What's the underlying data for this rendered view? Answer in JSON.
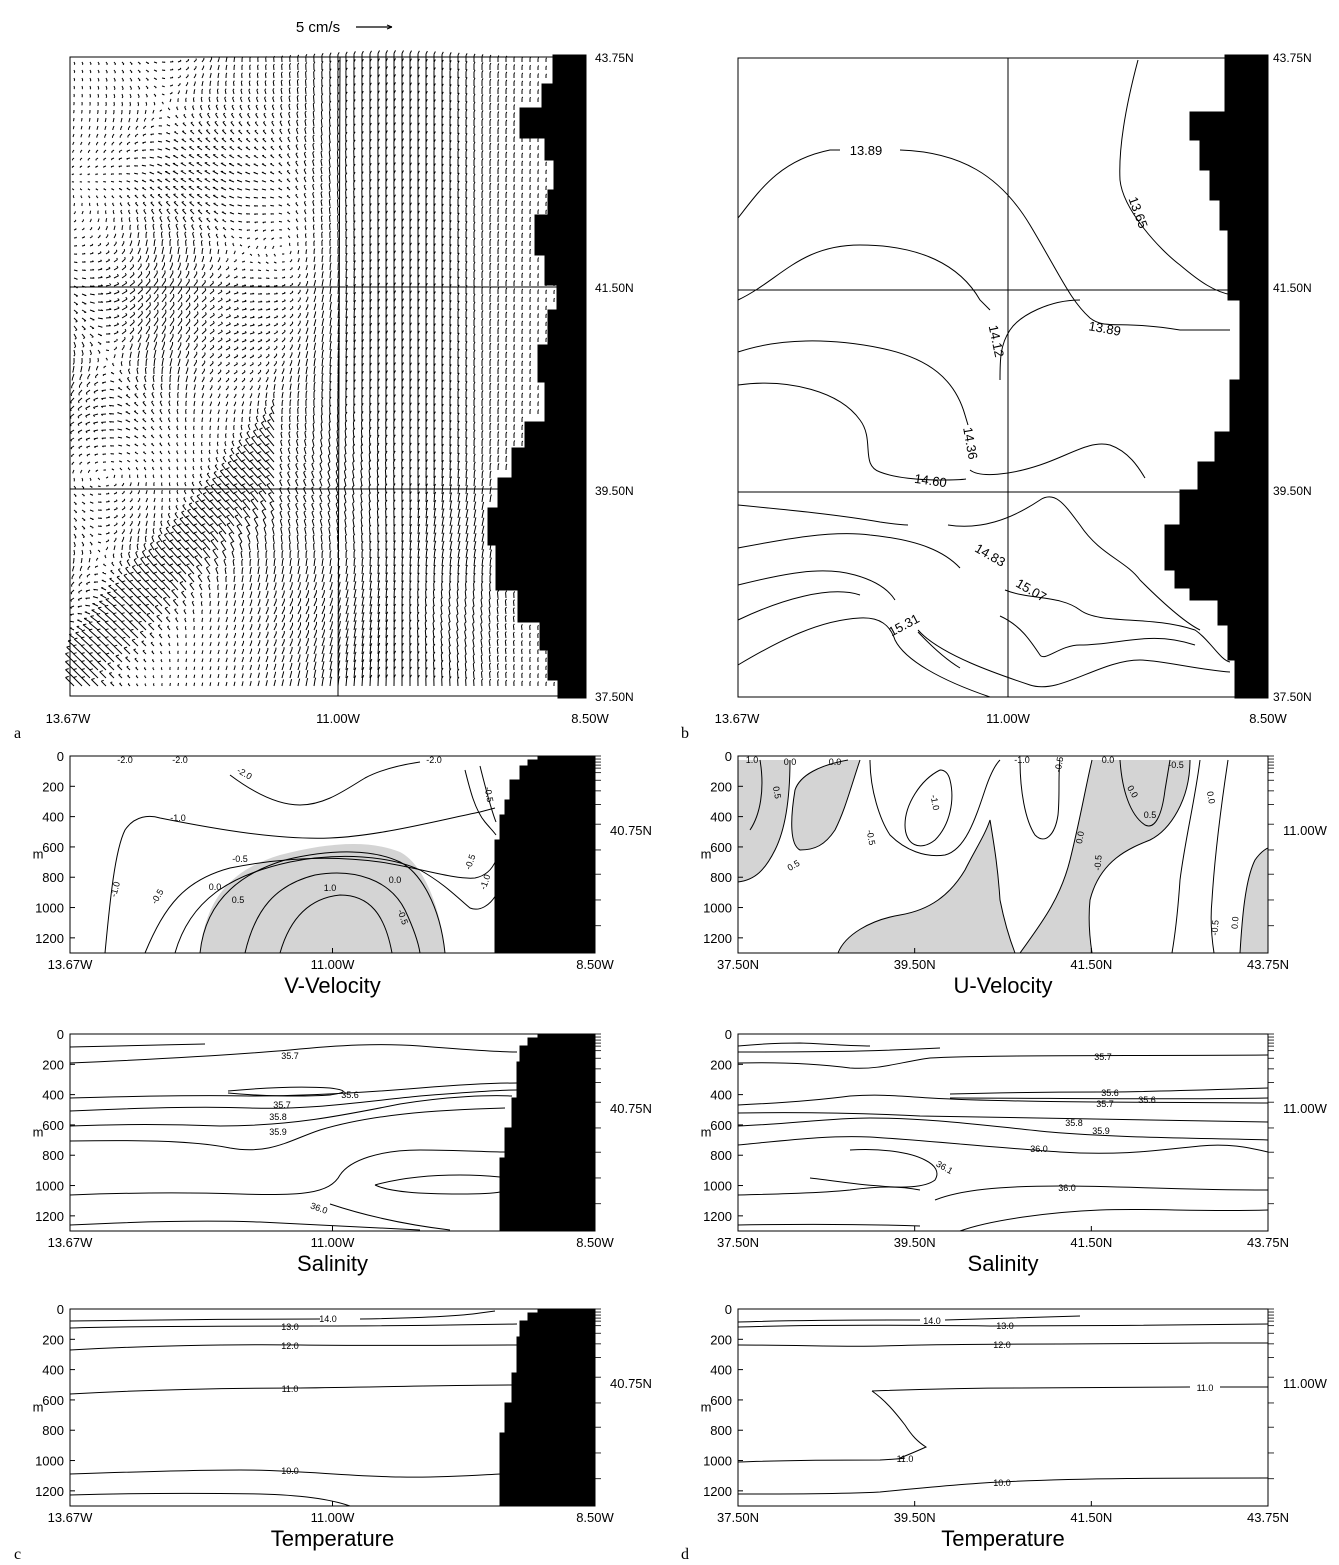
{
  "chart_data": [
    {
      "id": "a",
      "type": "quiver",
      "panel_label": "a",
      "scale_label": "5 cm/s",
      "x_ticks": [
        "13.67W",
        "11.00W",
        "8.50W"
      ],
      "y_ticks": [
        "43.75N",
        "41.50N",
        "39.50N",
        "37.50N"
      ],
      "xlim": [
        -13.67,
        -8.5
      ],
      "ylim": [
        37.5,
        43.75
      ],
      "land": "east"
    },
    {
      "id": "b",
      "type": "contour",
      "panel_label": "b",
      "x_ticks": [
        "13.67W",
        "11.00W",
        "8.50W"
      ],
      "y_ticks": [
        "43.75N",
        "41.50N",
        "39.50N",
        "37.50N"
      ],
      "contour_labels": [
        "13.89",
        "13.65",
        "14.12",
        "13.89",
        "14.36",
        "14.60",
        "14.83",
        "15.31",
        "15.07"
      ]
    },
    {
      "id": "c1",
      "type": "contour",
      "title": "V-Velocity",
      "x_ticks": [
        "13.67W",
        "11.00W",
        "8.50W"
      ],
      "y_ticks": [
        "0",
        "200",
        "400",
        "600",
        "800",
        "1000",
        "1200"
      ],
      "y_unit": "m",
      "side_label": "40.75N",
      "ylim": [
        0,
        1300
      ],
      "contour_labels": [
        "-2.0",
        "-2.0",
        "-2.0",
        "-2.0",
        "-1.0",
        "-1.0",
        "-0.5",
        "-0.5",
        "0.0",
        "0.5",
        "1.0",
        "0.0",
        "-0.5",
        "-0.5",
        "-1.0",
        "-0.5"
      ]
    },
    {
      "id": "c2",
      "type": "contour",
      "title": "Salinity",
      "x_ticks": [
        "13.67W",
        "11.00W",
        "8.50W"
      ],
      "y_ticks": [
        "0",
        "200",
        "400",
        "600",
        "800",
        "1000",
        "1200"
      ],
      "y_unit": "m",
      "side_label": "40.75N",
      "contour_labels": [
        "35.7",
        "35.6",
        "35.7",
        "35.8",
        "35.9",
        "36.0"
      ]
    },
    {
      "id": "c3",
      "type": "contour",
      "panel_label": "c",
      "title": "Temperature",
      "x_ticks": [
        "13.67W",
        "11.00W",
        "8.50W"
      ],
      "y_ticks": [
        "0",
        "200",
        "400",
        "600",
        "800",
        "1000",
        "1200"
      ],
      "y_unit": "m",
      "side_label": "40.75N",
      "contour_labels": [
        "14.0",
        "13.0",
        "12.0",
        "11.0",
        "10.0"
      ]
    },
    {
      "id": "d1",
      "type": "contour",
      "title": "U-Velocity",
      "x_ticks": [
        "37.50N",
        "39.50N",
        "41.50N",
        "43.75N"
      ],
      "y_ticks": [
        "0",
        "200",
        "400",
        "600",
        "800",
        "1000",
        "1200"
      ],
      "y_unit": "m",
      "side_label": "11.00W",
      "contour_labels": [
        "1.0",
        "0.0",
        "0.5",
        "-1.0",
        "-0.5",
        "0.0",
        "0.5",
        "-1.0",
        "-0.5",
        "0.0",
        "0.0",
        "0.5",
        "0.0",
        "-0.5",
        "-0.5",
        "0.0",
        "-0.5",
        "0.0"
      ]
    },
    {
      "id": "d2",
      "type": "contour",
      "title": "Salinity",
      "x_ticks": [
        "37.50N",
        "39.50N",
        "41.50N",
        "43.75N"
      ],
      "y_ticks": [
        "0",
        "200",
        "400",
        "600",
        "800",
        "1000",
        "1200"
      ],
      "y_unit": "m",
      "side_label": "11.00W",
      "contour_labels": [
        "35.7",
        "35.6",
        "35.6",
        "35.7",
        "35.8",
        "35.9",
        "36.0",
        "36.1",
        "36.0"
      ]
    },
    {
      "id": "d3",
      "type": "contour",
      "panel_label": "d",
      "title": "Temperature",
      "x_ticks": [
        "37.50N",
        "39.50N",
        "41.50N",
        "43.75N"
      ],
      "y_ticks": [
        "0",
        "200",
        "400",
        "600",
        "800",
        "1000",
        "1200"
      ],
      "y_unit": "m",
      "side_label": "11.00W",
      "contour_labels": [
        "14.0",
        "13.0",
        "12.0",
        "11.0",
        "11.0",
        "10.0"
      ]
    }
  ]
}
